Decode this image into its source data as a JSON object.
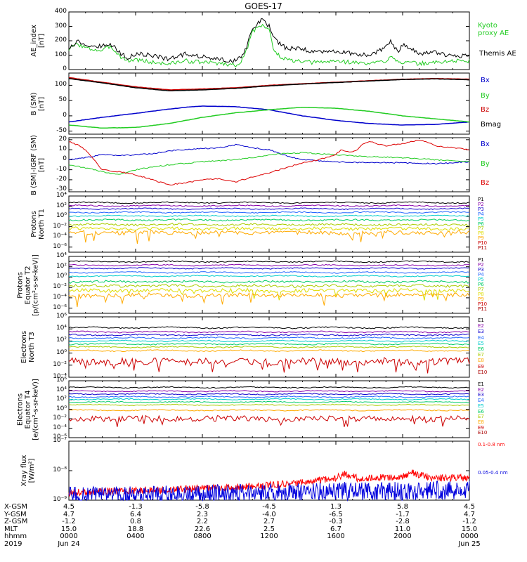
{
  "title": "GOES-17",
  "bottom_table": {
    "rows": [
      {
        "label": "X-GSM",
        "values": [
          "4.5",
          "-1.3",
          "-5.8",
          "-4.5",
          "1.3",
          "5.8",
          "4.5"
        ]
      },
      {
        "label": "Y-GSM",
        "values": [
          "4.7",
          "6.4",
          "2.3",
          "-4.0",
          "-6.5",
          "-1.7",
          "4.7"
        ]
      },
      {
        "label": "Z-GSM",
        "values": [
          "-1.2",
          "0.8",
          "2.2",
          "2.7",
          "-0.3",
          "-2.8",
          "-1.2"
        ]
      },
      {
        "label": "MLT",
        "values": [
          "15.0",
          "18.8",
          "22.6",
          "2.5",
          "6.7",
          "11.0",
          "15.0"
        ]
      },
      {
        "label": "hhmm",
        "values": [
          "0000",
          "0400",
          "0800",
          "1200",
          "1600",
          "2000",
          "0000"
        ]
      },
      {
        "label": "2019",
        "values": [
          "Jun 24",
          "",
          "",
          "",
          "",
          "",
          "Jun 25"
        ]
      }
    ]
  },
  "chart_data": [
    {
      "type": "line",
      "ylabel": "AE_index\n[nT]",
      "ylim": [
        0,
        400
      ],
      "yticks": [
        "400",
        "300",
        "200",
        "100",
        "0"
      ],
      "series": [
        {
          "name": "Kyoto proxy AE",
          "color": "#22cc22",
          "style": "ae",
          "x": [
            0,
            0.5,
            1,
            2,
            2.5,
            3,
            3.5,
            4,
            5,
            6,
            7,
            8,
            9,
            10,
            10.5,
            11,
            11.3,
            11.6,
            12,
            12.3,
            12.7,
            13,
            14,
            15,
            16,
            17,
            18,
            19,
            19.3,
            19.7,
            20,
            21,
            22,
            23,
            24
          ],
          "y": [
            140,
            180,
            150,
            130,
            165,
            100,
            60,
            70,
            50,
            40,
            60,
            50,
            45,
            30,
            80,
            260,
            300,
            310,
            280,
            120,
            90,
            70,
            50,
            50,
            60,
            50,
            40,
            60,
            100,
            60,
            50,
            40,
            50,
            60,
            60
          ]
        },
        {
          "name": "Themis AE",
          "color": "#000000",
          "style": "ae",
          "x": [
            0,
            0.5,
            1,
            2,
            2.5,
            3,
            3.5,
            4,
            5,
            6,
            7,
            8,
            9,
            10,
            10.5,
            11,
            11.3,
            11.6,
            12,
            12.3,
            12.7,
            13,
            14,
            15,
            16,
            17,
            18,
            19,
            19.3,
            19.7,
            20,
            21,
            22,
            23,
            24
          ],
          "y": [
            150,
            200,
            170,
            160,
            180,
            120,
            80,
            110,
            100,
            70,
            110,
            90,
            70,
            60,
            110,
            280,
            320,
            345,
            300,
            210,
            180,
            150,
            140,
            120,
            130,
            110,
            100,
            150,
            200,
            120,
            170,
            110,
            120,
            90,
            100
          ]
        }
      ]
    },
    {
      "type": "line",
      "ylabel": "B (SM)\n[nT]",
      "ylim": [
        -60,
        140
      ],
      "yticks": [
        "100",
        "50",
        "0",
        "-50"
      ],
      "series": [
        {
          "name": "Bx",
          "color": "#0000cc",
          "style": "smooth",
          "x": [
            0,
            2,
            4,
            6,
            7,
            8,
            10,
            12,
            14,
            16,
            18,
            20,
            22,
            24
          ],
          "y": [
            -20,
            -5,
            8,
            22,
            28,
            32,
            30,
            20,
            0,
            -15,
            -25,
            -30,
            -28,
            -20
          ]
        },
        {
          "name": "By",
          "color": "#22cc22",
          "style": "smooth",
          "x": [
            0,
            2,
            4,
            6,
            8,
            10,
            12,
            14,
            16,
            18,
            20,
            22,
            24
          ],
          "y": [
            -30,
            -40,
            -38,
            -25,
            -5,
            10,
            20,
            28,
            25,
            15,
            0,
            -10,
            -20
          ]
        },
        {
          "name": "Bz",
          "color": "#cc0000",
          "style": "smooth",
          "x": [
            0,
            2,
            4,
            6,
            8,
            10,
            12,
            14,
            16,
            18,
            20,
            22,
            24
          ],
          "y": [
            125,
            110,
            95,
            85,
            88,
            92,
            100,
            105,
            110,
            115,
            120,
            122,
            120
          ]
        },
        {
          "name": "Bmag",
          "color": "#000000",
          "style": "smooth",
          "x": [
            0,
            2,
            4,
            6,
            8,
            10,
            12,
            14,
            16,
            18,
            20,
            22,
            24
          ],
          "y": [
            122,
            108,
            92,
            82,
            85,
            90,
            98,
            104,
            109,
            114,
            119,
            121,
            118
          ]
        }
      ]
    },
    {
      "type": "line",
      "ylabel": "B (SM)-IGRF (SM)\n[nT]",
      "ylim": [
        -32,
        22
      ],
      "yticks": [
        "20",
        "10",
        "0",
        "-10",
        "-20",
        "-30"
      ],
      "series": [
        {
          "name": "Bx",
          "color": "#0000cc",
          "style": "noisy",
          "x": [
            0,
            1,
            2,
            3,
            4,
            5,
            6,
            7,
            8,
            9,
            10,
            11,
            12,
            13,
            14,
            16,
            18,
            20,
            22,
            24
          ],
          "y": [
            0,
            2,
            5,
            4,
            5,
            6,
            9,
            10,
            11,
            12,
            15,
            12,
            10,
            4,
            0,
            -2,
            -3,
            -3,
            -4,
            -2
          ]
        },
        {
          "name": "By",
          "color": "#22cc22",
          "style": "noisy",
          "x": [
            0,
            1,
            2,
            3,
            4,
            6,
            8,
            10,
            11,
            12,
            13,
            14,
            16,
            18,
            20,
            22,
            24
          ],
          "y": [
            -5,
            -8,
            -12,
            -15,
            -10,
            -5,
            -2,
            0,
            2,
            5,
            6,
            7,
            5,
            3,
            2,
            0,
            -2
          ]
        },
        {
          "name": "Bz",
          "color": "#dd0000",
          "style": "noisy",
          "x": [
            0,
            0.5,
            1,
            1.5,
            2,
            3,
            4,
            5,
            6,
            7,
            8,
            9,
            10,
            11,
            12,
            13,
            14,
            15,
            16,
            16.3,
            16.8,
            17.2,
            17.6,
            18,
            19,
            20,
            21,
            22,
            23,
            24
          ],
          "y": [
            18,
            15,
            10,
            0,
            -10,
            -12,
            -15,
            -20,
            -25,
            -23,
            -20,
            -19,
            -22,
            -17,
            -13,
            -8,
            -3,
            0,
            5,
            10,
            8,
            9,
            15,
            18,
            14,
            16,
            20,
            14,
            12,
            10
          ]
        }
      ]
    },
    {
      "type": "line",
      "ylabel": "Protons\nNorth T1",
      "ylim": [
        -7,
        4
      ],
      "yscale": "log",
      "yticks": [
        "10^4",
        "10^2",
        "10^0",
        "10^-2",
        "10^-4",
        "10^-6"
      ],
      "series": [
        {
          "name": "P1",
          "color": "#000000",
          "level": 2.7,
          "noise": 0.1
        },
        {
          "name": "P2",
          "color": "#8800aa",
          "level": 2.1,
          "noise": 0.1
        },
        {
          "name": "P3",
          "color": "#1100cc",
          "level": 1.5,
          "noise": 0.1
        },
        {
          "name": "P4",
          "color": "#2266ff",
          "level": 0.8,
          "noise": 0.1
        },
        {
          "name": "P5",
          "color": "#00cccc",
          "level": 0.1,
          "noise": 0.1
        },
        {
          "name": "P6",
          "color": "#00cc66",
          "level": -0.7,
          "noise": 0.15
        },
        {
          "name": "P7",
          "color": "#aacc00",
          "level": -1.6,
          "noise": 0.2
        },
        {
          "name": "P8",
          "color": "#dddd00",
          "level": -2.4,
          "noise": 0.3
        },
        {
          "name": "P9",
          "color": "#ffaa00",
          "level": -3.2,
          "noise": 0.4
        },
        {
          "name": "P10",
          "color": "#cc0000",
          "level": -7,
          "noise": 0
        },
        {
          "name": "P11",
          "color": "#aa0000",
          "level": -7,
          "noise": 0
        }
      ]
    },
    {
      "type": "line",
      "ylabel": "Protons\nEquator T2\n[p/(cm²-s-sr-keV)]",
      "ylim": [
        -7,
        4
      ],
      "yscale": "log",
      "yticks": [
        "10^4",
        "10^2",
        "10^0",
        "10^-2",
        "10^-4",
        "10^-6"
      ],
      "series": [
        {
          "name": "P1",
          "color": "#000000",
          "level": 3.0,
          "noise": 0.1
        },
        {
          "name": "P2",
          "color": "#8800aa",
          "level": 2.3,
          "noise": 0.1
        },
        {
          "name": "P3",
          "color": "#1100cc",
          "level": 1.7,
          "noise": 0.1
        },
        {
          "name": "P4",
          "color": "#2266ff",
          "level": 0.9,
          "noise": 0.1
        },
        {
          "name": "P5",
          "color": "#00cccc",
          "level": 0.2,
          "noise": 0.1
        },
        {
          "name": "P6",
          "color": "#00cc66",
          "level": -0.9,
          "noise": 0.2
        },
        {
          "name": "P7",
          "color": "#aacc00",
          "level": -1.7,
          "noise": 0.25
        },
        {
          "name": "P8",
          "color": "#dddd00",
          "level": -2.6,
          "noise": 0.35
        },
        {
          "name": "P9",
          "color": "#ffaa00",
          "level": -3.5,
          "noise": 0.4
        },
        {
          "name": "P10",
          "color": "#cc0000",
          "level": -7,
          "noise": 0
        },
        {
          "name": "P11",
          "color": "#aa0000",
          "level": -7,
          "noise": 0
        }
      ]
    },
    {
      "type": "line",
      "ylabel": "Electrons\nNorth T3",
      "ylim": [
        -4,
        6
      ],
      "yscale": "log",
      "yticks": [
        "10^6",
        "10^4",
        "10^2",
        "10^0",
        "10^-2",
        "10^-4"
      ],
      "series": [
        {
          "name": "E1",
          "color": "#000000",
          "level": 4.2,
          "noise": 0.1
        },
        {
          "name": "E2",
          "color": "#8800aa",
          "level": 3.5,
          "noise": 0.1
        },
        {
          "name": "E3",
          "color": "#1100cc",
          "level": 3.0,
          "noise": 0.1
        },
        {
          "name": "E4",
          "color": "#2266ff",
          "level": 2.5,
          "noise": 0.1
        },
        {
          "name": "E5",
          "color": "#00cccc",
          "level": 2.0,
          "noise": 0.1
        },
        {
          "name": "E6",
          "color": "#00cc66",
          "level": 1.5,
          "noise": 0.1
        },
        {
          "name": "E7",
          "color": "#aacc00",
          "level": 1.0,
          "noise": 0.1
        },
        {
          "name": "E8",
          "color": "#ffaa00",
          "level": 0.4,
          "noise": 0.1
        },
        {
          "name": "E9",
          "color": "#cc0000",
          "level": -1.4,
          "noise": 0.6
        },
        {
          "name": "E10",
          "color": "#aa0000",
          "level": -4,
          "noise": 0
        }
      ]
    },
    {
      "type": "line",
      "ylabel": "Electrons\nEquator T4\n[e/(cm²-s-sr-keV)]",
      "ylim": [
        -6,
        6
      ],
      "yscale": "log",
      "yticks": [
        "10^6",
        "10^4",
        "10^2",
        "10^0",
        "10^-2",
        "10^-4",
        "10^-6"
      ],
      "series": [
        {
          "name": "E1",
          "color": "#000000",
          "level": 4.6,
          "noise": 0.1
        },
        {
          "name": "E2",
          "color": "#8800aa",
          "level": 3.8,
          "noise": 0.1
        },
        {
          "name": "E3",
          "color": "#1100cc",
          "level": 3.2,
          "noise": 0.1
        },
        {
          "name": "E4",
          "color": "#2266ff",
          "level": 2.6,
          "noise": 0.1
        },
        {
          "name": "E5",
          "color": "#00cccc",
          "level": 2.1,
          "noise": 0.1
        },
        {
          "name": "E6",
          "color": "#00cc66",
          "level": 1.5,
          "noise": 0.1
        },
        {
          "name": "E7",
          "color": "#aacc00",
          "level": 0.9,
          "noise": 0.1
        },
        {
          "name": "E8",
          "color": "#ffaa00",
          "level": -0.2,
          "noise": 0.1
        },
        {
          "name": "E9",
          "color": "#cc0000",
          "level": -2.0,
          "noise": 0.6
        },
        {
          "name": "E10",
          "color": "#aa0000",
          "level": -6,
          "noise": 0
        }
      ]
    },
    {
      "type": "line",
      "ylabel": "Xray flux\n[W/m²]",
      "ylim": [
        -9,
        -7
      ],
      "yscale": "log",
      "yticks": [
        "10^-7",
        "10^-8",
        "10^-9"
      ],
      "series": [
        {
          "name": "0.1-0.8 nm",
          "color": "#ff0000",
          "style": "xray",
          "x": [
            0,
            2,
            4,
            6,
            8,
            10,
            12,
            14,
            16,
            16.5,
            17,
            17.5,
            18,
            20,
            20.5,
            21,
            22,
            24
          ],
          "y": [
            -8.75,
            -8.7,
            -8.68,
            -8.65,
            -8.6,
            -8.55,
            -8.5,
            -8.4,
            -8.25,
            -8.12,
            -8.2,
            -8.3,
            -8.25,
            -8.2,
            -8.05,
            -8.15,
            -8.25,
            -8.25
          ]
        },
        {
          "name": "0.05-0.4 nm",
          "color": "#0000dd",
          "style": "xray",
          "x": [
            0,
            4,
            8,
            12,
            16,
            20,
            24
          ],
          "y": [
            -8.85,
            -8.85,
            -8.8,
            -8.75,
            -8.7,
            -8.7,
            -8.65
          ]
        }
      ]
    }
  ]
}
